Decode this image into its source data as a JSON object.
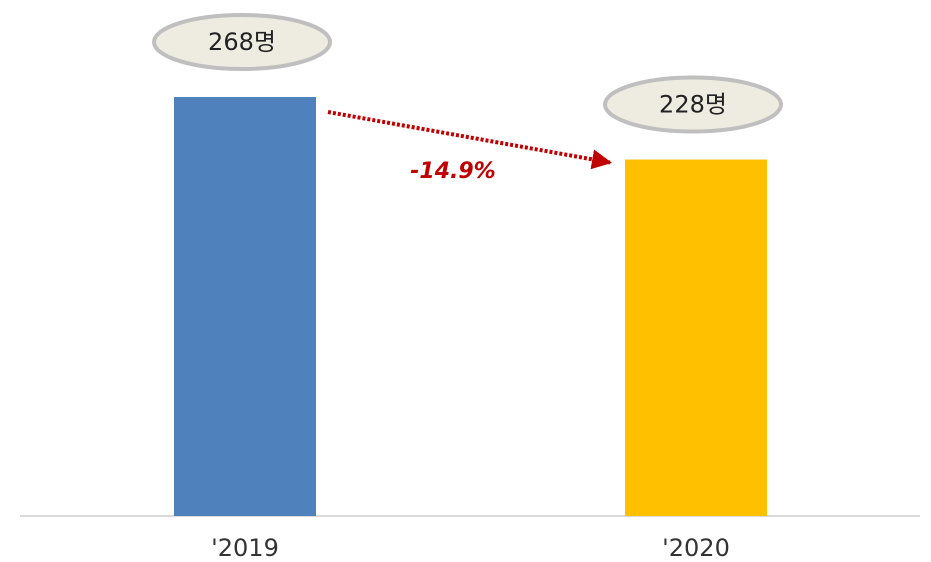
{
  "chart_data": {
    "type": "bar",
    "categories": [
      "'2019",
      "'2020"
    ],
    "series": [
      {
        "name": null,
        "colors": [
          "#4f81bd",
          "#ffc000"
        ],
        "values": [
          268,
          228
        ],
        "value_labels": [
          "268명",
          "228명"
        ]
      }
    ],
    "annotation": "-14.9%"
  }
}
